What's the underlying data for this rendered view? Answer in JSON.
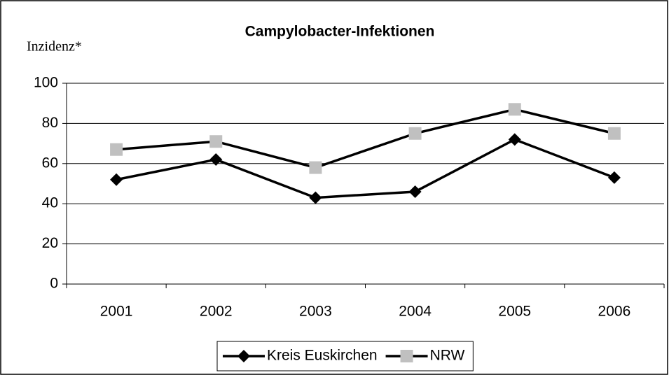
{
  "chart_data": {
    "type": "line",
    "title": "Campylobacter-Infektionen",
    "y_label": "Inzidenz*",
    "categories": [
      "2001",
      "2002",
      "2003",
      "2004",
      "2005",
      "2006"
    ],
    "series": [
      {
        "name": "Kreis Euskirchen",
        "color": "#000000",
        "marker": "diamond",
        "values": [
          52,
          62,
          43,
          46,
          72,
          53
        ]
      },
      {
        "name": "NRW",
        "color": "#c0c0c0",
        "marker": "square",
        "values": [
          67,
          71,
          58,
          75,
          87,
          75
        ]
      }
    ],
    "ylim": [
      0,
      100
    ],
    "yticks": [
      0,
      20,
      40,
      60,
      80,
      100
    ],
    "grid": true,
    "legend": "bottom"
  }
}
